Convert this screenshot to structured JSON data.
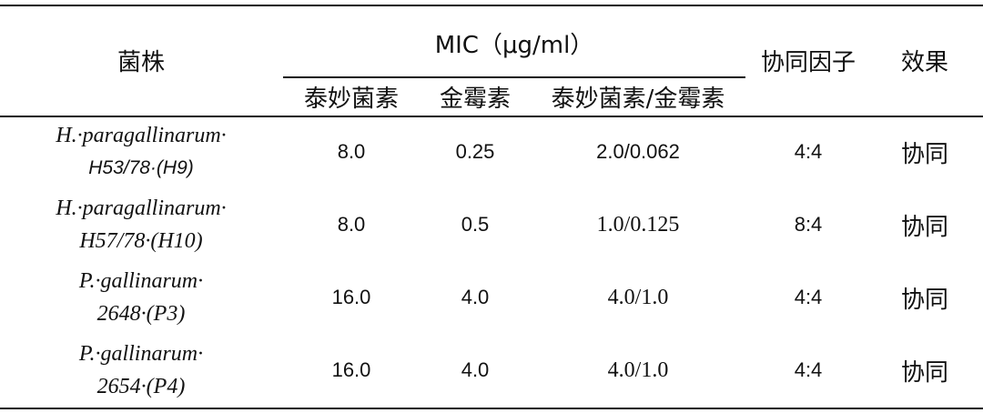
{
  "table": {
    "headers": {
      "strain": "菌株",
      "mic": "MIC（μg/ml）",
      "tiamulin": "泰妙菌素",
      "chlortetracycline": "金霉素",
      "combo": "泰妙菌素/金霉素",
      "fic": "协同因子",
      "effect": "效果"
    },
    "rows": [
      {
        "strain_line1": "H.·paragallinarum·",
        "strain_line2": "H53/78·(H9)",
        "tiamulin": "8.0",
        "chlortetracycline": "0.25",
        "combo": "2.0/0.062",
        "fic": "4:4",
        "effect": "协同"
      },
      {
        "strain_line1": "H.·paragallinarum·",
        "strain_line2": "H57/78·(H10)",
        "tiamulin": "8.0",
        "chlortetracycline": "0.5",
        "combo": "1.0/0.125",
        "fic": "8:4",
        "effect": "协同"
      },
      {
        "strain_line1": "P.·gallinarum·",
        "strain_line2": "2648·(P3)",
        "tiamulin": "16.0",
        "chlortetracycline": "4.0",
        "combo": "4.0/1.0",
        "fic": "4:4",
        "effect": "协同"
      },
      {
        "strain_line1": "P.·gallinarum·",
        "strain_line2": "2654·(P4)",
        "tiamulin": "16.0",
        "chlortetracycline": "4.0",
        "combo": "4.0/1.0",
        "fic": "4:4",
        "effect": "协同"
      }
    ]
  }
}
